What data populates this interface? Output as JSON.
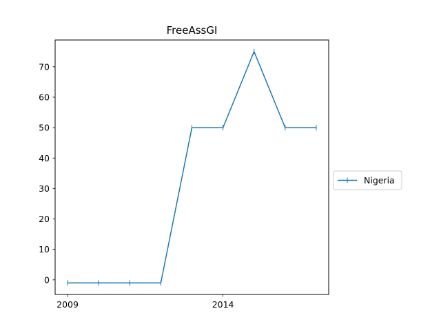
{
  "chart_data": {
    "type": "line",
    "title": "FreeAssGI",
    "xlabel": "",
    "ylabel": "",
    "x": [
      2009,
      2010,
      2011,
      2012,
      2013,
      2014,
      2015,
      2016,
      2017
    ],
    "series": [
      {
        "name": "Nigeria",
        "values": [
          -1,
          -1,
          -1,
          -1,
          50,
          50,
          75,
          50,
          50
        ]
      }
    ],
    "xlim": [
      2008.6,
      2017.4
    ],
    "ylim": [
      -4.8,
      78.8
    ],
    "xticks": [
      2009,
      2014
    ],
    "xtick_labels": [
      "2009",
      "2014"
    ],
    "yticks": [
      0,
      10,
      20,
      30,
      40,
      50,
      60,
      70
    ],
    "ytick_labels": [
      "0",
      "10",
      "20",
      "30",
      "40",
      "50",
      "60",
      "70"
    ],
    "grid": false,
    "legend_position": "center-right-outside",
    "colors": {
      "series": "#1f77b4",
      "axes": "#000000",
      "background": "#ffffff"
    }
  }
}
